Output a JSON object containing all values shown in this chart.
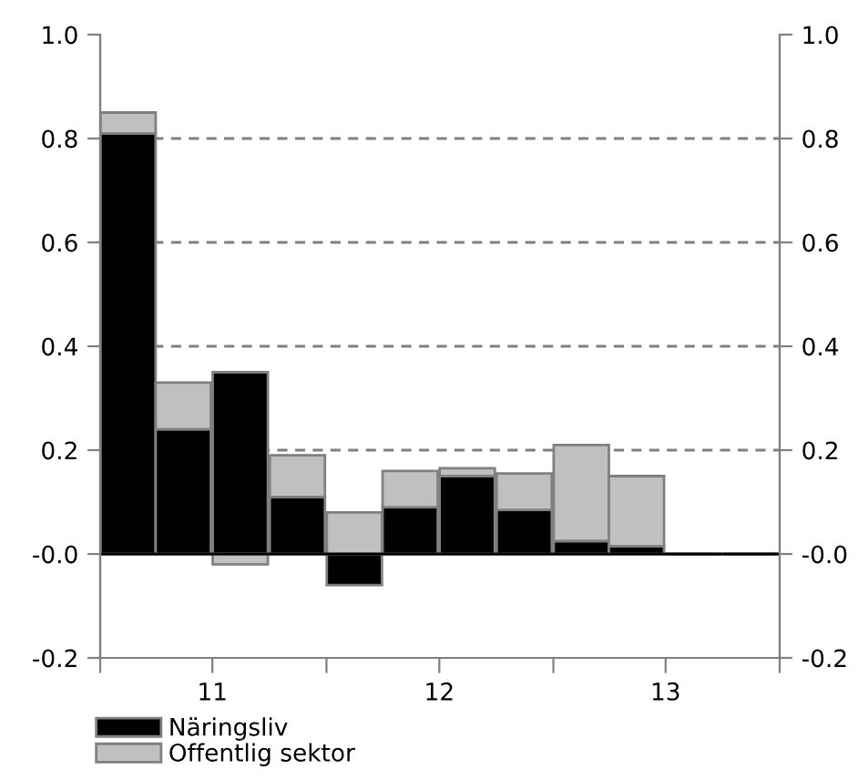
{
  "chart_data": {
    "type": "bar",
    "stacked": true,
    "x": [
      "2011-02-15",
      "2011-05-15",
      "2011-08-15",
      "2011-11-15",
      "2012-02-15",
      "2012-05-15",
      "2012-08-15",
      "2012-11-15",
      "2013-02-15",
      "2013-05-15",
      "2013-08-15",
      "2013-11-15"
    ],
    "series": [
      {
        "name": "Näringsliv",
        "color": "#000000",
        "values": [
          0.81,
          0.24,
          0.35,
          0.11,
          -0.06,
          0.09,
          0.15,
          0.085,
          0.025,
          0.015,
          0,
          0
        ]
      },
      {
        "name": "Offentlig sektor",
        "color": "#c0c0c0",
        "values": [
          0.04,
          0.09,
          -0.02,
          0.08,
          0.08,
          0.07,
          0.015,
          0.07,
          0.185,
          0.135,
          0,
          0
        ]
      }
    ],
    "xlim": [
      "2011-01-01",
      "2014-01-01"
    ],
    "xticks": [
      {
        "value": "2011-01-01",
        "label": null
      },
      {
        "value": "2011-07-01",
        "label": "11"
      },
      {
        "value": "2012-01-01",
        "label": null
      },
      {
        "value": "2012-07-01",
        "label": "12"
      },
      {
        "value": "2013-01-01",
        "label": null
      },
      {
        "value": "2013-07-01",
        "label": "13"
      },
      {
        "value": "2014-01-01",
        "label": null
      }
    ],
    "ylim": [
      -0.2,
      1.0
    ],
    "yticks": [
      -0.2,
      {
        "value": 0,
        "label": "-0.0"
      },
      0.2,
      0.4,
      0.6,
      0.8,
      {
        "value": 1.0,
        "label": "1.0"
      }
    ],
    "y2lim": [
      -0.2,
      1.0
    ],
    "y2ticks": [
      -0.2,
      {
        "value": 0,
        "label": "-0.0"
      },
      0.2,
      0.4,
      0.6,
      0.8,
      {
        "value": 1.0,
        "label": "1.0"
      }
    ],
    "grid": "y",
    "legend": "bottom"
  }
}
